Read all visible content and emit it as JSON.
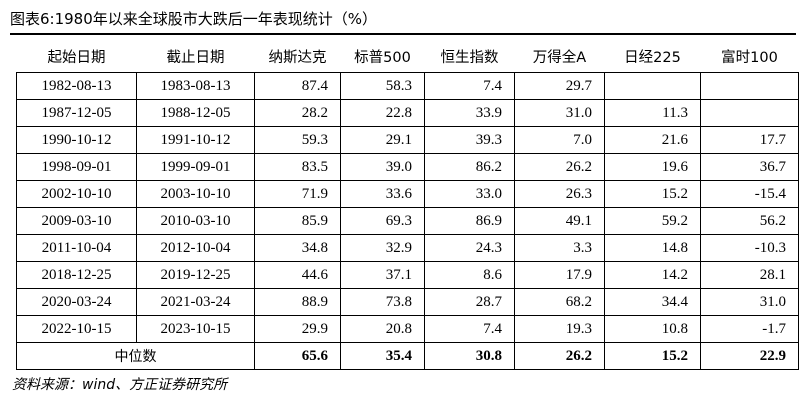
{
  "title": "图表6:1980年以来全球股市大跌后一年表现统计（%）",
  "table": {
    "header": [
      "起始日期",
      "截止日期",
      "纳斯达克",
      "标普500",
      "恒生指数",
      "万得全A",
      "日经225",
      "富时100"
    ],
    "rows": [
      [
        "1982-08-13",
        "1983-08-13",
        87.4,
        58.3,
        7.4,
        29.7,
        null,
        null
      ],
      [
        "1987-12-05",
        "1988-12-05",
        28.2,
        22.8,
        33.9,
        31.0,
        11.3,
        null
      ],
      [
        "1990-10-12",
        "1991-10-12",
        59.3,
        29.1,
        39.3,
        7.0,
        21.6,
        17.7
      ],
      [
        "1998-09-01",
        "1999-09-01",
        83.5,
        39.0,
        86.2,
        26.2,
        19.6,
        36.7
      ],
      [
        "2002-10-10",
        "2003-10-10",
        71.9,
        33.6,
        33.0,
        26.3,
        15.2,
        -15.4
      ],
      [
        "2009-03-10",
        "2010-03-10",
        85.9,
        69.3,
        86.9,
        49.1,
        59.2,
        56.2
      ],
      [
        "2011-10-04",
        "2012-10-04",
        34.8,
        32.9,
        24.3,
        3.3,
        14.8,
        -10.3
      ],
      [
        "2018-12-25",
        "2019-12-25",
        44.6,
        37.1,
        8.6,
        17.9,
        14.2,
        28.1
      ],
      [
        "2020-03-24",
        "2021-03-24",
        88.9,
        73.8,
        28.7,
        68.2,
        34.4,
        31.0
      ],
      [
        "2022-10-15",
        "2023-10-15",
        29.9,
        20.8,
        7.4,
        19.3,
        10.8,
        -1.7
      ]
    ],
    "median_label": "中位数",
    "median": [
      65.6,
      35.4,
      30.8,
      26.2,
      15.2,
      22.9
    ]
  },
  "source": "资料来源：wind、方正证券研究所"
}
